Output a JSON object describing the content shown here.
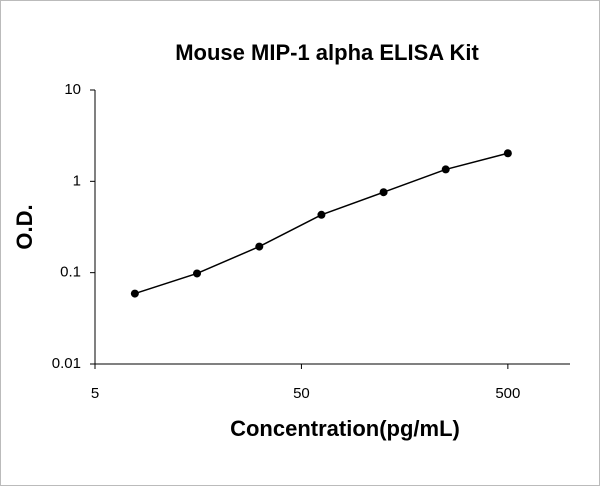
{
  "chart_data": {
    "type": "scatter",
    "title": "Mouse MIP-1 alpha ELISA Kit",
    "x_label": "Concentration(pg/mL)",
    "y_label": "O.D.",
    "x": [
      7.8,
      15.6,
      31.25,
      62.5,
      125,
      250,
      500
    ],
    "series": [
      {
        "color": "#000000",
        "values": [
          0.059,
          0.098,
          0.193,
          0.43,
          0.76,
          1.35,
          2.03
        ]
      }
    ],
    "xlim": [
      5,
      1000
    ],
    "ylim": [
      0.01,
      10
    ],
    "xticks": [
      5,
      50,
      500
    ],
    "yticks": [
      0.01,
      0.1,
      1,
      10
    ],
    "xscale": "log",
    "yscale": "log"
  }
}
